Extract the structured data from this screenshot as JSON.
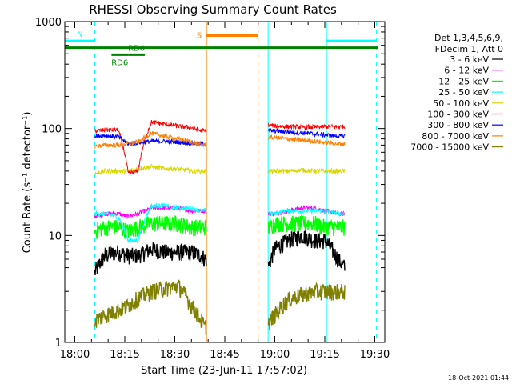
{
  "chart_data": {
    "type": "line",
    "title": "RHESSI Observing Summary Count Rates",
    "xlabel": "Start Time (23-Jun-11 17:57:02)",
    "ylabel": "Count Rate (s⁻¹ detector⁻¹)",
    "x_unit": "minutes after 17:57:02",
    "xlim": [
      0,
      96
    ],
    "ylim": [
      1,
      1000
    ],
    "yscale": "log",
    "x_ticks": [
      {
        "label": "18:00",
        "value": 3
      },
      {
        "label": "18:15",
        "value": 18
      },
      {
        "label": "18:30",
        "value": 33
      },
      {
        "label": "18:45",
        "value": 48
      },
      {
        "label": "19:00",
        "value": 63
      },
      {
        "label": "19:15",
        "value": 78
      },
      {
        "label": "19:30",
        "value": 93
      }
    ],
    "y_ticks": [
      {
        "label": "1",
        "value": 1
      },
      {
        "label": "10",
        "value": 10
      },
      {
        "label": "100",
        "value": 100
      },
      {
        "label": "1000",
        "value": 1000
      }
    ],
    "legend_header": [
      "Det 1,3,4,5,6,9,",
      "FDecim 1, Att 0"
    ],
    "legend_position": "right",
    "gaps": [
      [
        42.5,
        61
      ]
    ],
    "series": [
      {
        "name": "3 - 6 keV",
        "color": "#000000",
        "points": [
          [
            9,
            4.5
          ],
          [
            12,
            6.5
          ],
          [
            16,
            7
          ],
          [
            19,
            6.5
          ],
          [
            22,
            6.5
          ],
          [
            26,
            7.5
          ],
          [
            30,
            7
          ],
          [
            34,
            7
          ],
          [
            38,
            7
          ],
          [
            41,
            6.5
          ],
          [
            42,
            6
          ],
          [
            61,
            5
          ],
          [
            63,
            7.5
          ],
          [
            67,
            9
          ],
          [
            71,
            10
          ],
          [
            75,
            9
          ],
          [
            78,
            9
          ],
          [
            82,
            6
          ],
          [
            84,
            5
          ]
        ]
      },
      {
        "name": "6 - 12 keV",
        "color": "#ff00ff",
        "points": [
          [
            9,
            15
          ],
          [
            12,
            16
          ],
          [
            16,
            16
          ],
          [
            19,
            15
          ],
          [
            22,
            16
          ],
          [
            26,
            18
          ],
          [
            30,
            18
          ],
          [
            34,
            18
          ],
          [
            38,
            17
          ],
          [
            41,
            17
          ],
          [
            42,
            17
          ],
          [
            61,
            16
          ],
          [
            63,
            16
          ],
          [
            67,
            17
          ],
          [
            71,
            18
          ],
          [
            75,
            18
          ],
          [
            78,
            17
          ],
          [
            82,
            16
          ],
          [
            84,
            16
          ]
        ]
      },
      {
        "name": "12 - 25 keV",
        "color": "#00ff00",
        "points": [
          [
            9,
            11
          ],
          [
            12,
            12
          ],
          [
            16,
            12
          ],
          [
            19,
            11
          ],
          [
            22,
            12
          ],
          [
            26,
            13
          ],
          [
            30,
            13
          ],
          [
            34,
            13
          ],
          [
            38,
            12
          ],
          [
            41,
            12
          ],
          [
            42,
            12
          ],
          [
            61,
            12
          ],
          [
            63,
            13
          ],
          [
            67,
            13
          ],
          [
            71,
            13
          ],
          [
            75,
            13
          ],
          [
            78,
            12
          ],
          [
            82,
            12
          ],
          [
            84,
            12
          ]
        ]
      },
      {
        "name": "25 - 50 keV",
        "color": "#00ffff",
        "points": [
          [
            9,
            16
          ],
          [
            12,
            16
          ],
          [
            16,
            15
          ],
          [
            19,
            9
          ],
          [
            22,
            9
          ],
          [
            26,
            19
          ],
          [
            30,
            19
          ],
          [
            34,
            18
          ],
          [
            38,
            18
          ],
          [
            41,
            17
          ],
          [
            42,
            17
          ],
          [
            61,
            16
          ],
          [
            63,
            16
          ],
          [
            67,
            17
          ],
          [
            71,
            17
          ],
          [
            75,
            17
          ],
          [
            78,
            17
          ],
          [
            82,
            16
          ],
          [
            84,
            16
          ]
        ]
      },
      {
        "name": "50 - 100 keV",
        "color": "#d8d800",
        "points": [
          [
            9,
            38
          ],
          [
            12,
            40
          ],
          [
            16,
            40
          ],
          [
            19,
            40
          ],
          [
            22,
            42
          ],
          [
            26,
            44
          ],
          [
            30,
            42
          ],
          [
            34,
            42
          ],
          [
            38,
            40
          ],
          [
            41,
            40
          ],
          [
            42,
            40
          ],
          [
            61,
            40
          ],
          [
            63,
            40
          ],
          [
            67,
            40
          ],
          [
            71,
            41
          ],
          [
            75,
            40
          ],
          [
            78,
            40
          ],
          [
            82,
            40
          ],
          [
            84,
            40
          ]
        ]
      },
      {
        "name": "100 - 300 keV",
        "color": "#ff0000",
        "points": [
          [
            9,
            95
          ],
          [
            12,
            97
          ],
          [
            16,
            97
          ],
          [
            19,
            38
          ],
          [
            22,
            40
          ],
          [
            26,
            115
          ],
          [
            30,
            110
          ],
          [
            34,
            105
          ],
          [
            38,
            102
          ],
          [
            41,
            95
          ],
          [
            42,
            95
          ],
          [
            61,
            108
          ],
          [
            63,
            106
          ],
          [
            67,
            104
          ],
          [
            71,
            103
          ],
          [
            75,
            103
          ],
          [
            78,
            104
          ],
          [
            82,
            104
          ],
          [
            84,
            104
          ]
        ]
      },
      {
        "name": "300 - 800 keV",
        "color": "#0000ff",
        "points": [
          [
            9,
            85
          ],
          [
            12,
            86
          ],
          [
            16,
            84
          ],
          [
            19,
            72
          ],
          [
            22,
            74
          ],
          [
            26,
            76
          ],
          [
            30,
            76
          ],
          [
            34,
            75
          ],
          [
            38,
            73
          ],
          [
            41,
            72
          ],
          [
            42,
            72
          ],
          [
            61,
            95
          ],
          [
            63,
            95
          ],
          [
            67,
            93
          ],
          [
            71,
            91
          ],
          [
            75,
            89
          ],
          [
            78,
            87
          ],
          [
            82,
            85
          ],
          [
            84,
            85
          ]
        ]
      },
      {
        "name": "800 - 7000 keV",
        "color": "#ff8000",
        "points": [
          [
            9,
            68
          ],
          [
            12,
            70
          ],
          [
            16,
            70
          ],
          [
            19,
            72
          ],
          [
            22,
            75
          ],
          [
            26,
            90
          ],
          [
            30,
            85
          ],
          [
            34,
            80
          ],
          [
            38,
            75
          ],
          [
            41,
            70
          ],
          [
            42,
            70
          ],
          [
            61,
            82
          ],
          [
            63,
            82
          ],
          [
            67,
            80
          ],
          [
            71,
            78
          ],
          [
            75,
            76
          ],
          [
            78,
            74
          ],
          [
            82,
            72
          ],
          [
            84,
            72
          ]
        ]
      },
      {
        "name": "7000 - 15000 keV",
        "color": "#808000",
        "points": [
          [
            9,
            1.6
          ],
          [
            12,
            1.8
          ],
          [
            16,
            2
          ],
          [
            19,
            2.2
          ],
          [
            22,
            2.6
          ],
          [
            26,
            3
          ],
          [
            30,
            3.2
          ],
          [
            34,
            3.4
          ],
          [
            38,
            2.2
          ],
          [
            41,
            1.6
          ],
          [
            42,
            1.4
          ],
          [
            61,
            1.5
          ],
          [
            63,
            1.8
          ],
          [
            67,
            2.5
          ],
          [
            71,
            2.8
          ],
          [
            75,
            3
          ],
          [
            78,
            3
          ],
          [
            82,
            3
          ],
          [
            84,
            3
          ]
        ]
      }
    ],
    "annotations": {
      "verticals": [
        {
          "x": 0,
          "color": "#00ffff",
          "style": "solid"
        },
        {
          "x": 9,
          "color": "#00ffff",
          "style": "dashed"
        },
        {
          "x": 42.5,
          "color": "#ff8000",
          "style": "solid"
        },
        {
          "x": 61,
          "color": "#00ffff",
          "style": "solid"
        },
        {
          "x": 58,
          "color": "#ff8000",
          "style": "dashed"
        },
        {
          "x": 78.5,
          "color": "#00ffff",
          "style": "solid"
        },
        {
          "x": 93.5,
          "color": "#00ffff",
          "style": "dashed"
        }
      ],
      "segments": [
        {
          "label": "N",
          "color": "#00ffff",
          "x": [
            0,
            9
          ],
          "y": 660,
          "label_pos": "above"
        },
        {
          "label": "",
          "color": "#00ffff",
          "x": [
            78.5,
            93.5
          ],
          "y": 660,
          "label_pos": "none"
        },
        {
          "label": "S",
          "color": "#ff8000",
          "x": [
            42.5,
            58
          ],
          "y": 740,
          "label_pos": "above-left"
        },
        {
          "label": "RD6",
          "color": "#008000",
          "x": [
            14,
            19
          ],
          "y": 490,
          "label_pos": "below"
        },
        {
          "label": "RD0",
          "color": "#008000",
          "x": [
            19,
            24
          ],
          "y": 490,
          "label_pos": "above"
        },
        {
          "label": "",
          "color": "#008000",
          "x": [
            0,
            94
          ],
          "y": 570,
          "label_pos": "none"
        }
      ]
    },
    "timestamp": "18-Oct-2021 01:44"
  }
}
